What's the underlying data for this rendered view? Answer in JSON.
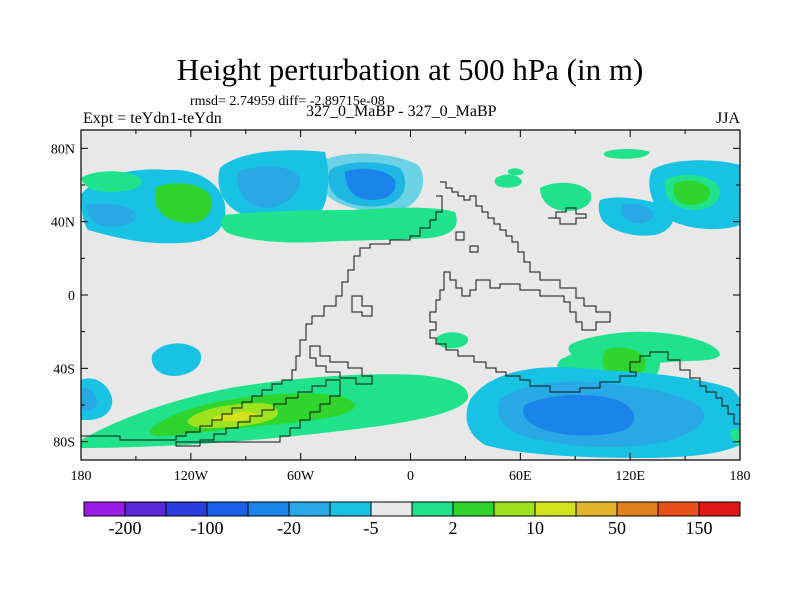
{
  "header": {
    "title": "Height perturbation at 500 hPa (in m)",
    "stats": "rmsd= 2.74959 diff= -2.89715e-08",
    "experiment": "Expt = teYdn1-teYdn",
    "center_label": "327_0_MaBP - 327_0_MaBP",
    "season": "JJA"
  },
  "chart_data": {
    "type": "heatmap",
    "title": "Height perturbation at 500 hPa (in m)",
    "variable": "500 hPa geopotential height difference",
    "units": "m",
    "xlabel": "",
    "ylabel": "",
    "x_ticks": [
      "180",
      "120W",
      "60W",
      "0",
      "60E",
      "120E",
      "180"
    ],
    "x_tick_values": [
      -180,
      -120,
      -60,
      0,
      60,
      120,
      180
    ],
    "y_ticks": [
      "80N",
      "40N",
      "0",
      "40S",
      "80S"
    ],
    "y_tick_values": [
      80,
      40,
      0,
      -40,
      -80
    ],
    "xlim": [
      -180,
      180
    ],
    "ylim": [
      -90,
      90
    ],
    "colorbar": {
      "labels": [
        "-200",
        "-100",
        "-20",
        "-5",
        "2",
        "10",
        "50",
        "150"
      ],
      "colors": [
        "#9a1be6",
        "#5a28d6",
        "#2a3ede",
        "#1a5ee8",
        "#1a84ea",
        "#29a8e6",
        "#17c2e3",
        "#e8e8e8",
        "#1fe28a",
        "#2fd42c",
        "#9ce21f",
        "#d3e21c",
        "#e2b52a",
        "#e27f1f",
        "#e8501c",
        "#e11717"
      ]
    },
    "fields": [
      {
        "lon": -118,
        "lat": 46,
        "rx": 38,
        "ry": 18,
        "level": "negative"
      },
      {
        "lon": -108,
        "lat": 44,
        "rx": 22,
        "ry": 12,
        "level": "positive"
      },
      {
        "lon": -165,
        "lat": 37,
        "rx": 16,
        "ry": 8,
        "level": "negative"
      },
      {
        "lon": -60,
        "lat": 52,
        "rx": 35,
        "ry": 16,
        "level": "negative"
      },
      {
        "lon": -42,
        "lat": 52,
        "rx": 15,
        "ry": 8,
        "level": "strong-negative"
      },
      {
        "lon": 80,
        "lat": -66,
        "rx": 75,
        "ry": 20,
        "level": "strong-negative"
      },
      {
        "lon": -80,
        "lat": -64,
        "rx": 95,
        "ry": 13,
        "level": "positive"
      },
      {
        "lon": -95,
        "lat": -66,
        "rx": 40,
        "ry": 7,
        "level": "strong-positive"
      }
    ]
  }
}
